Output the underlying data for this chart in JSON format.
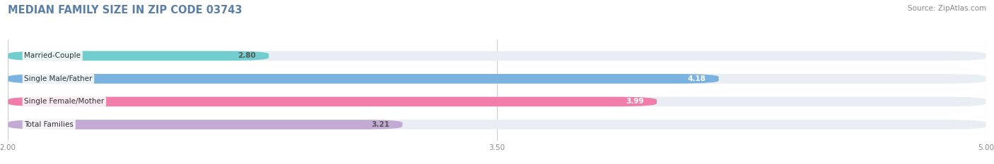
{
  "title": "MEDIAN FAMILY SIZE IN ZIP CODE 03743",
  "source": "Source: ZipAtlas.com",
  "categories": [
    "Married-Couple",
    "Single Male/Father",
    "Single Female/Mother",
    "Total Families"
  ],
  "values": [
    2.8,
    4.18,
    3.99,
    3.21
  ],
  "bar_colors": [
    "#72cece",
    "#7ab3e0",
    "#f07daa",
    "#c3aad4"
  ],
  "value_text_colors": [
    "#555555",
    "#ffffff",
    "#ffffff",
    "#555555"
  ],
  "bar_height": 0.42,
  "xlim_min": 2.0,
  "xlim_max": 5.0,
  "xticks": [
    2.0,
    3.5,
    5.0
  ],
  "xtick_labels": [
    "2.00",
    "3.50",
    "5.00"
  ],
  "background_color": "#ffffff",
  "bar_background_color": "#e8eef3",
  "title_fontsize": 10.5,
  "label_fontsize": 7.5,
  "value_fontsize": 7.5,
  "source_fontsize": 7.5,
  "title_color": "#5a7fa8",
  "source_color": "#888888",
  "gridline_color": "#cccccc",
  "tick_color": "#888888"
}
